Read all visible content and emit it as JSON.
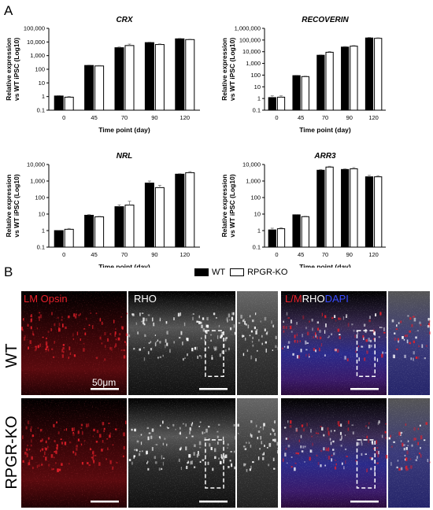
{
  "panel_a_label": "A",
  "panel_b_label": "B",
  "legend": {
    "wt_label": "WT",
    "ko_label": "RPGR-KO",
    "wt_color": "#000000",
    "ko_color": "#ffffff"
  },
  "chart_data": [
    {
      "type": "bar",
      "title": "CRX",
      "categories": [
        "0",
        "45",
        "70",
        "90",
        "120"
      ],
      "series": [
        {
          "name": "WT",
          "values": [
            1.1,
            190,
            3800,
            9000,
            17000
          ],
          "errors": [
            0.1,
            15,
            500,
            800,
            1500
          ]
        },
        {
          "name": "RPGR-KO",
          "values": [
            0.9,
            175,
            5500,
            6500,
            15000
          ],
          "errors": [
            0.1,
            15,
            1500,
            700,
            1200
          ]
        }
      ],
      "ylim": [
        0.1,
        100000
      ],
      "yscale": "log",
      "yticks": [
        "0.1",
        "1",
        "10",
        "100",
        "1,000",
        "10,000",
        "100,000"
      ],
      "ylabel": [
        "Relative expression",
        "vs WT iPSC (Log10)"
      ],
      "xlabel": "Time point (day)"
    },
    {
      "type": "bar",
      "title": "RECOVERIN",
      "categories": [
        "0",
        "45",
        "70",
        "90",
        "120"
      ],
      "series": [
        {
          "name": "WT",
          "values": [
            1.2,
            90,
            5000,
            25000,
            150000
          ],
          "errors": [
            0.5,
            8,
            500,
            3000,
            20000
          ]
        },
        {
          "name": "RPGR-KO",
          "values": [
            1.3,
            75,
            9000,
            30000,
            140000
          ],
          "errors": [
            0.4,
            8,
            1500,
            4000,
            15000
          ]
        }
      ],
      "ylim": [
        0.1,
        1000000
      ],
      "yscale": "log",
      "yticks": [
        "0.1",
        "1",
        "10",
        "100",
        "1,000",
        "10,000",
        "100,000",
        "1,000,000"
      ],
      "ylabel": [
        "Relative expression",
        "vs WT iPSC (Log10)"
      ],
      "xlabel": "Time point (day)"
    },
    {
      "type": "bar",
      "title": "NRL",
      "categories": [
        "0",
        "45",
        "70",
        "90",
        "120"
      ],
      "series": [
        {
          "name": "WT",
          "values": [
            1,
            8.5,
            28,
            750,
            2600
          ],
          "errors": [
            0.05,
            0.8,
            8,
            250,
            200
          ]
        },
        {
          "name": "RPGR-KO",
          "values": [
            1.2,
            6.8,
            35,
            400,
            3200
          ],
          "errors": [
            0.15,
            0.5,
            25,
            150,
            500
          ]
        }
      ],
      "ylim": [
        0.1,
        10000
      ],
      "yscale": "log",
      "yticks": [
        "0.1",
        "1",
        "10",
        "100",
        "1,000",
        "10,000"
      ],
      "ylabel": [
        "Relative expression",
        "vs WT iPSC (Log10)"
      ],
      "xlabel": "Time point (day)"
    },
    {
      "type": "bar",
      "title": "ARR3",
      "categories": [
        "0",
        "45",
        "70",
        "90",
        "120"
      ],
      "series": [
        {
          "name": "WT",
          "values": [
            1.1,
            9,
            4500,
            5000,
            1800
          ],
          "errors": [
            0.3,
            0.5,
            500,
            500,
            400
          ]
        },
        {
          "name": "RPGR-KO",
          "values": [
            1.3,
            7,
            7000,
            5500,
            1800
          ],
          "errors": [
            0.2,
            0.5,
            800,
            1000,
            300
          ]
        }
      ],
      "ylim": [
        0.1,
        10000
      ],
      "yscale": "log",
      "yticks": [
        "0.1",
        "1",
        "10",
        "100",
        "1,000",
        "10,000"
      ],
      "ylabel": [
        "Relative expression",
        "vs WT iPSC (Log10)"
      ],
      "xlabel": "Time point (day)"
    }
  ],
  "micrographs": {
    "row_labels": [
      "WT",
      "RPGR-KO"
    ],
    "col_labels": {
      "lm_opsin": "LM Opsin",
      "rho": "RHO",
      "merge_l_m": "L/M",
      "merge_rho": "RHO",
      "merge_dapi": "DAPI"
    },
    "scale_label": "50μm",
    "colors": {
      "red": "#e8202a",
      "blue": "#3a4cff",
      "white": "#ffffff"
    }
  }
}
